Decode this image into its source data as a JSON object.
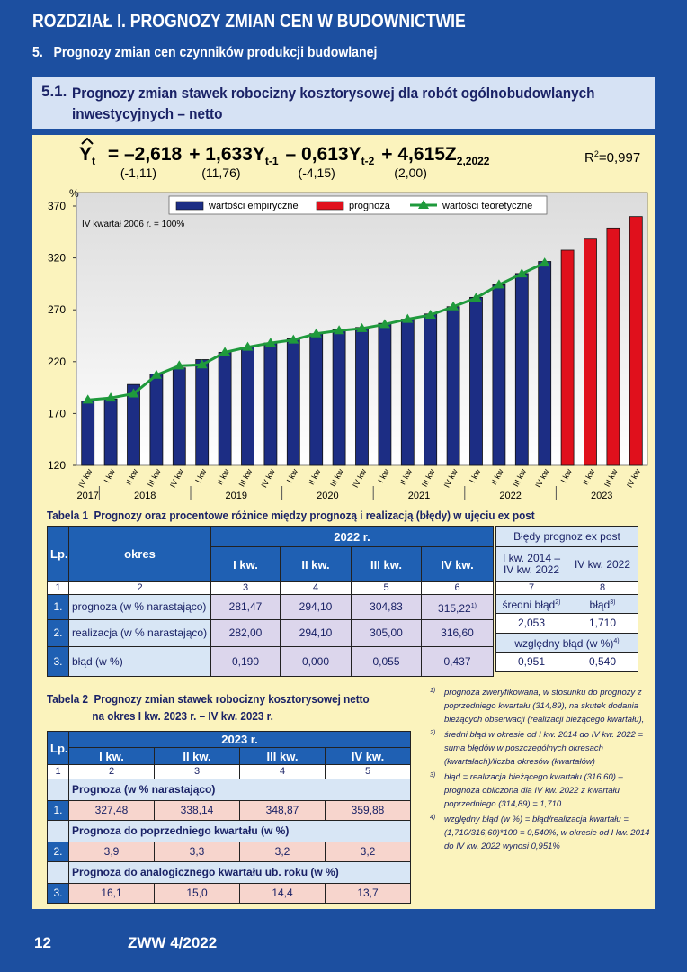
{
  "header": {
    "chapter": "ROZDZIAŁ I.  PROGNOZY ZMIAN CEN W BUDOWNICTWIE",
    "section": "5.   Prognozy zmian cen czynników produkcji budowlanej",
    "subsection_number": "5.1.",
    "subsection": "Prognozy zmian stawek robocizny kosztorysowej dla robót ogólnobudowlanych inwestycyjnych – netto"
  },
  "formula": {
    "lhs": "Y",
    "lhs_sub": "t",
    "terms": [
      {
        "text": "= –2,618",
        "t_stat": "(-1,11)"
      },
      {
        "text": "+ 1,633Y",
        "sub": "t-1",
        "t_stat": "(11,76)"
      },
      {
        "text": "– 0,613Y",
        "sub": "t-2",
        "t_stat": "(-4,15)"
      },
      {
        "text": "+ 4,615Z",
        "sub": "2,2022",
        "t_stat": "(2,00)"
      }
    ],
    "r2_label": "R",
    "r2_sup": "2",
    "r2_value": "=0,997"
  },
  "chart_data": {
    "type": "bar",
    "y_label": "%",
    "annotation": "IV kwartał 2006 r. = 100%",
    "legend": "top",
    "grid": false,
    "categories": [
      "IV kw",
      "I kw",
      "II kw",
      "III kw",
      "IV kw",
      "I kw",
      "II kw",
      "III kw",
      "IV kw",
      "I kw",
      "II kw",
      "III kw",
      "IV kw",
      "I kw",
      "II kw",
      "III kw",
      "IV kw",
      "I kw",
      "II kw",
      "III kw",
      "IV kw",
      "I kw",
      "II kw",
      "III kw",
      "IV kw"
    ],
    "years": [
      "2017",
      "2018",
      "2019",
      "2020",
      "2021",
      "2022",
      "2023"
    ],
    "ylim": [
      120,
      370
    ],
    "yticks": [
      120,
      170,
      220,
      270,
      320,
      370
    ],
    "series": [
      {
        "name": "wartości empiryczne",
        "color": "#1c2d84",
        "type": "bar",
        "values": [
          182,
          184,
          198,
          208,
          214,
          222,
          229,
          234,
          238,
          242,
          247,
          251,
          253,
          257,
          261,
          266,
          273,
          282,
          294.1,
          305,
          316.6,
          null,
          null,
          null,
          null
        ]
      },
      {
        "name": "prognoza",
        "color": "#e0101c",
        "type": "bar",
        "values": [
          null,
          null,
          null,
          null,
          null,
          null,
          null,
          null,
          null,
          null,
          null,
          null,
          null,
          null,
          null,
          null,
          null,
          null,
          null,
          null,
          null,
          327.48,
          338.14,
          348.87,
          359.88
        ]
      },
      {
        "name": "wartości teoretyczne",
        "color": "#1f9a3c",
        "type": "line",
        "values": [
          183,
          185,
          189,
          207,
          216,
          217,
          229,
          234,
          238,
          241,
          247,
          250,
          252,
          256,
          261,
          265,
          273,
          281.47,
          294.1,
          304.83,
          315.22,
          null,
          null,
          null,
          null
        ]
      }
    ]
  },
  "table1": {
    "title_label": "Tabela 1",
    "title": "Prognozy oraz procentowe różnice między prognozą i realizacją (błędy) w ujęciu ex post",
    "lp": "Lp.",
    "period": "okres",
    "year": "2022 r.",
    "quarters": [
      "I kw.",
      "II kw.",
      "III kw.",
      "IV kw."
    ],
    "column_numbers": [
      "1",
      "2",
      "3",
      "4",
      "5",
      "6"
    ],
    "rows": [
      {
        "number": "1.",
        "label": "prognoza (w % narastająco)",
        "values": [
          "281,47",
          "294,10",
          "304,83",
          "315,22"
        ],
        "note": "1)"
      },
      {
        "number": "2.",
        "label": "realizacja (w % narastająco)",
        "values": [
          "282,00",
          "294,10",
          "305,00",
          "316,60"
        ]
      },
      {
        "number": "3.",
        "label": "błąd (w %)",
        "values": [
          "0,190",
          "0,000",
          "0,055",
          "0,437"
        ]
      }
    ]
  },
  "errors_table": {
    "title": "Błędy prognoz ex post",
    "columns": [
      "I kw. 2014 – IV kw. 2022",
      "IV kw. 2022"
    ],
    "column_numbers": [
      "7",
      "8"
    ],
    "mean_error": "średni błąd",
    "mean_error_note": "2)",
    "error": "błąd",
    "error_note": "3)",
    "values": [
      "2,053",
      "1,710"
    ],
    "relative_error": "względny błąd (w %)",
    "relative_error_note": "4)",
    "relative_values": [
      "0,951",
      "0,540"
    ]
  },
  "table2": {
    "title_label": "Tabela 2",
    "title": "Prognozy zmian stawek robocizny kosztorysowej netto",
    "title_line2": "na okres I kw. 2023 r. – IV kw. 2023 r.",
    "lp": "Lp.",
    "year": "2023 r.",
    "quarters": [
      "I kw.",
      "II kw.",
      "III kw.",
      "IV kw."
    ],
    "column_numbers": [
      "1",
      "2",
      "3",
      "4",
      "5"
    ],
    "sections": [
      {
        "title": "Prognoza (w % narastająco)",
        "number": "1.",
        "values": [
          "327,48",
          "338,14",
          "348,87",
          "359,88"
        ]
      },
      {
        "title": "Prognoza do poprzedniego kwartału (w %)",
        "number": "2.",
        "values": [
          "3,9",
          "3,3",
          "3,2",
          "3,2"
        ]
      },
      {
        "title": "Prognoza do analogicznego kwartału ub. roku (w %)",
        "number": "3.",
        "values": [
          "16,1",
          "15,0",
          "14,4",
          "13,7"
        ]
      }
    ]
  },
  "footnotes": [
    {
      "mark": "1)",
      "text": "prognoza zweryfikowana, w stosunku do prognozy z poprzedniego kwartału (314,89), na skutek dodania bieżących obserwacji (realizacji bieżącego kwartału),"
    },
    {
      "mark": "2)",
      "text": "średni błąd w okresie od I kw. 2014 do IV kw. 2022 = suma błędów w poszczególnych okresach (kwartałach)/liczba okresów (kwartałów)"
    },
    {
      "mark": "3)",
      "text": "błąd = realizacja bieżącego kwartału (316,60) – prognoza obliczona dla IV kw. 2022 z kwartału poprzedniego (314,89) = 1,710"
    },
    {
      "mark": "4)",
      "text": "względny błąd (w %) = błąd/realizacja kwartału = (1,710/316,60)*100 = 0,540%, w okresie od I kw. 2014 do IV kw. 2022 wynosi 0,951%"
    }
  ],
  "footer": {
    "page": "12",
    "issue": "ZWW 4/2022"
  }
}
